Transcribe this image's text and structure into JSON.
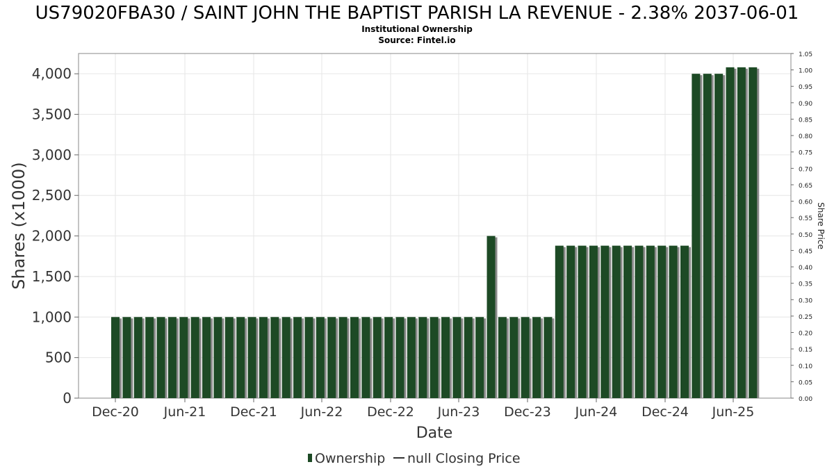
{
  "title": "US79020FBA30 / SAINT JOHN THE BAPTIST PARISH LA REVENUE - 2.38% 2037-06-01",
  "subtitle": "Institutional Ownership",
  "source": "Source: Fintel.io",
  "colors": {
    "bar": "#1d4a25",
    "bar_shadow": "#8a8a8a",
    "grid": "#e6e6e6",
    "axis": "#666666"
  },
  "chart_data": {
    "type": "bar",
    "xlabel": "Date",
    "ylabel": "Shares (x1000)",
    "y2label": "Share Price",
    "ylim": [
      0,
      4250
    ],
    "y2lim": [
      0,
      1.05
    ],
    "yticks": [
      "0",
      "500",
      "1,000",
      "1,500",
      "2,000",
      "2,500",
      "3,000",
      "3,500",
      "4,000"
    ],
    "ytick_values": [
      0,
      500,
      1000,
      1500,
      2000,
      2500,
      3000,
      3500,
      4000
    ],
    "y2ticks": [
      "0.00",
      "0.05",
      "0.10",
      "0.15",
      "0.20",
      "0.25",
      "0.30",
      "0.35",
      "0.40",
      "0.45",
      "0.50",
      "0.55",
      "0.60",
      "0.65",
      "0.70",
      "0.75",
      "0.80",
      "0.85",
      "0.90",
      "0.95",
      "1.00",
      "1.05"
    ],
    "xticks": [
      "Dec-20",
      "Jun-21",
      "Dec-21",
      "Jun-22",
      "Dec-22",
      "Jun-23",
      "Dec-23",
      "Jun-24",
      "Dec-24",
      "Jun-25"
    ],
    "grid": true,
    "legend": {
      "placement": "bottom-center",
      "entries": [
        "Ownership",
        "null Closing Price"
      ]
    },
    "series": [
      {
        "name": "Ownership",
        "values": [
          1000,
          1000,
          1000,
          1000,
          1000,
          1000,
          1000,
          1000,
          1000,
          1000,
          1000,
          1000,
          1000,
          1000,
          1000,
          1000,
          1000,
          1000,
          1000,
          1000,
          1000,
          1000,
          1000,
          1000,
          1000,
          1000,
          1000,
          1000,
          1000,
          1000,
          1000,
          1000,
          1000,
          2000,
          1000,
          1000,
          1000,
          1000,
          1000,
          1880,
          1880,
          1880,
          1880,
          1880,
          1880,
          1880,
          1880,
          1880,
          1880,
          1880,
          1880,
          4000,
          4000,
          4000,
          4080,
          4080,
          4080
        ]
      }
    ]
  }
}
